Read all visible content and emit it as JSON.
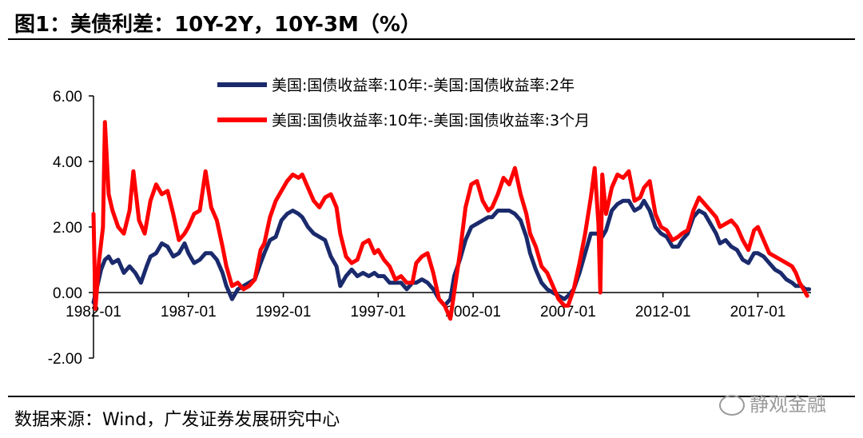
{
  "header": {
    "title": "图1：美债利差：10Y-2Y，10Y-3M（%）"
  },
  "footer": {
    "source": "数据来源：Wind，广发证券发展研究中心",
    "watermark": "静观金融"
  },
  "colors": {
    "series_10y2y": "#1a2a6c",
    "series_10y3m": "#ff0000"
  },
  "chart_data": {
    "type": "line",
    "title": "",
    "xlabel": "",
    "ylabel": "",
    "ylim": [
      -2,
      6
    ],
    "yticks": [
      -2,
      0,
      2,
      4,
      6
    ],
    "ytick_labels": [
      "-2.00",
      "0.00",
      "2.00",
      "4.00",
      "6.00"
    ],
    "xticks": [
      1982.0,
      1987.0,
      1992.0,
      1997.0,
      2002.0,
      2007.0,
      2012.0,
      2017.0
    ],
    "xtick_labels": [
      "1982-01",
      "1987-01",
      "1992-01",
      "1997-01",
      "2002-01",
      "2007-01",
      "2012-01",
      "2017-01"
    ],
    "xlim": [
      1982.0,
      2019.8
    ],
    "legend_position": "top",
    "grid": false,
    "series": [
      {
        "name": "美国:国债收益率:10年:-美国:国债收益率:2年",
        "color": "#1a2a6c",
        "points": [
          [
            1982.0,
            -0.3
          ],
          [
            1982.2,
            0.2
          ],
          [
            1982.4,
            0.7
          ],
          [
            1982.6,
            1.0
          ],
          [
            1982.8,
            1.1
          ],
          [
            1983.0,
            0.9
          ],
          [
            1983.3,
            1.0
          ],
          [
            1983.6,
            0.6
          ],
          [
            1983.9,
            0.8
          ],
          [
            1984.2,
            0.6
          ],
          [
            1984.5,
            0.3
          ],
          [
            1984.8,
            0.8
          ],
          [
            1985.0,
            1.1
          ],
          [
            1985.3,
            1.2
          ],
          [
            1985.6,
            1.5
          ],
          [
            1985.9,
            1.4
          ],
          [
            1986.2,
            1.1
          ],
          [
            1986.5,
            1.2
          ],
          [
            1986.8,
            1.5
          ],
          [
            1987.0,
            1.2
          ],
          [
            1987.3,
            0.9
          ],
          [
            1987.6,
            1.0
          ],
          [
            1987.9,
            1.2
          ],
          [
            1988.2,
            1.2
          ],
          [
            1988.5,
            1.0
          ],
          [
            1988.8,
            0.6
          ],
          [
            1989.0,
            0.2
          ],
          [
            1989.3,
            -0.2
          ],
          [
            1989.6,
            0.1
          ],
          [
            1989.9,
            0.2
          ],
          [
            1990.2,
            0.3
          ],
          [
            1990.5,
            0.4
          ],
          [
            1990.8,
            0.9
          ],
          [
            1991.0,
            1.2
          ],
          [
            1991.3,
            1.6
          ],
          [
            1991.6,
            1.7
          ],
          [
            1991.9,
            2.2
          ],
          [
            1992.2,
            2.4
          ],
          [
            1992.5,
            2.5
          ],
          [
            1992.8,
            2.4
          ],
          [
            1993.0,
            2.3
          ],
          [
            1993.3,
            2.0
          ],
          [
            1993.6,
            1.8
          ],
          [
            1993.9,
            1.7
          ],
          [
            1994.2,
            1.6
          ],
          [
            1994.5,
            1.1
          ],
          [
            1994.8,
            0.8
          ],
          [
            1995.0,
            0.2
          ],
          [
            1995.3,
            0.5
          ],
          [
            1995.6,
            0.7
          ],
          [
            1995.9,
            0.5
          ],
          [
            1996.2,
            0.6
          ],
          [
            1996.5,
            0.5
          ],
          [
            1996.8,
            0.6
          ],
          [
            1997.0,
            0.5
          ],
          [
            1997.3,
            0.5
          ],
          [
            1997.6,
            0.3
          ],
          [
            1997.9,
            0.3
          ],
          [
            1998.2,
            0.3
          ],
          [
            1998.5,
            0.1
          ],
          [
            1998.8,
            0.3
          ],
          [
            1999.0,
            0.3
          ],
          [
            1999.3,
            0.4
          ],
          [
            1999.6,
            0.3
          ],
          [
            1999.9,
            0.1
          ],
          [
            2000.2,
            -0.2
          ],
          [
            2000.5,
            -0.4
          ],
          [
            2000.8,
            -0.2
          ],
          [
            2001.0,
            0.5
          ],
          [
            2001.3,
            1.0
          ],
          [
            2001.6,
            1.6
          ],
          [
            2001.9,
            2.0
          ],
          [
            2002.2,
            2.1
          ],
          [
            2002.5,
            2.2
          ],
          [
            2002.8,
            2.3
          ],
          [
            2003.0,
            2.3
          ],
          [
            2003.3,
            2.5
          ],
          [
            2003.6,
            2.5
          ],
          [
            2003.9,
            2.5
          ],
          [
            2004.2,
            2.4
          ],
          [
            2004.5,
            2.2
          ],
          [
            2004.8,
            1.7
          ],
          [
            2005.0,
            1.2
          ],
          [
            2005.3,
            0.7
          ],
          [
            2005.6,
            0.3
          ],
          [
            2005.9,
            0.1
          ],
          [
            2006.2,
            0.0
          ],
          [
            2006.5,
            -0.1
          ],
          [
            2006.8,
            -0.2
          ],
          [
            2007.0,
            -0.1
          ],
          [
            2007.3,
            0.1
          ],
          [
            2007.6,
            0.6
          ],
          [
            2007.9,
            1.2
          ],
          [
            2008.2,
            1.8
          ],
          [
            2008.5,
            1.8
          ],
          [
            2008.8,
            1.7
          ],
          [
            2009.0,
            1.9
          ],
          [
            2009.3,
            2.5
          ],
          [
            2009.6,
            2.7
          ],
          [
            2009.9,
            2.8
          ],
          [
            2010.2,
            2.8
          ],
          [
            2010.5,
            2.5
          ],
          [
            2010.8,
            2.6
          ],
          [
            2011.0,
            2.8
          ],
          [
            2011.3,
            2.5
          ],
          [
            2011.6,
            2.0
          ],
          [
            2011.9,
            1.8
          ],
          [
            2012.2,
            1.7
          ],
          [
            2012.5,
            1.4
          ],
          [
            2012.8,
            1.4
          ],
          [
            2013.0,
            1.6
          ],
          [
            2013.3,
            1.8
          ],
          [
            2013.6,
            2.3
          ],
          [
            2013.9,
            2.5
          ],
          [
            2014.2,
            2.4
          ],
          [
            2014.5,
            2.1
          ],
          [
            2014.8,
            1.8
          ],
          [
            2015.0,
            1.5
          ],
          [
            2015.3,
            1.6
          ],
          [
            2015.6,
            1.4
          ],
          [
            2015.9,
            1.3
          ],
          [
            2016.2,
            1.0
          ],
          [
            2016.5,
            0.9
          ],
          [
            2016.8,
            1.2
          ],
          [
            2017.0,
            1.2
          ],
          [
            2017.3,
            1.1
          ],
          [
            2017.6,
            0.9
          ],
          [
            2017.9,
            0.7
          ],
          [
            2018.2,
            0.6
          ],
          [
            2018.5,
            0.4
          ],
          [
            2018.8,
            0.3
          ],
          [
            2019.0,
            0.2
          ],
          [
            2019.3,
            0.2
          ],
          [
            2019.5,
            0.1
          ],
          [
            2019.7,
            0.1
          ]
        ]
      },
      {
        "name": "美国:国债收益率:10年:-美国:国债收益率:3个月",
        "color": "#ff0000",
        "points": [
          [
            1982.0,
            2.4
          ],
          [
            1982.1,
            -0.5
          ],
          [
            1982.3,
            1.0
          ],
          [
            1982.5,
            2.0
          ],
          [
            1982.6,
            5.2
          ],
          [
            1982.8,
            3.0
          ],
          [
            1983.0,
            2.5
          ],
          [
            1983.3,
            2.0
          ],
          [
            1983.6,
            1.8
          ],
          [
            1983.9,
            2.5
          ],
          [
            1984.1,
            3.7
          ],
          [
            1984.4,
            2.2
          ],
          [
            1984.7,
            1.8
          ],
          [
            1985.0,
            2.8
          ],
          [
            1985.3,
            3.3
          ],
          [
            1985.6,
            3.0
          ],
          [
            1985.9,
            3.1
          ],
          [
            1986.2,
            2.4
          ],
          [
            1986.5,
            1.6
          ],
          [
            1986.8,
            1.8
          ],
          [
            1987.0,
            2.0
          ],
          [
            1987.3,
            2.4
          ],
          [
            1987.6,
            2.5
          ],
          [
            1987.9,
            3.7
          ],
          [
            1988.2,
            2.6
          ],
          [
            1988.5,
            2.2
          ],
          [
            1988.8,
            1.4
          ],
          [
            1989.0,
            0.8
          ],
          [
            1989.3,
            0.2
          ],
          [
            1989.6,
            0.3
          ],
          [
            1989.9,
            0.1
          ],
          [
            1990.2,
            0.2
          ],
          [
            1990.5,
            0.4
          ],
          [
            1990.8,
            1.3
          ],
          [
            1991.0,
            1.5
          ],
          [
            1991.3,
            2.3
          ],
          [
            1991.6,
            2.8
          ],
          [
            1991.9,
            3.1
          ],
          [
            1992.2,
            3.4
          ],
          [
            1992.5,
            3.6
          ],
          [
            1992.8,
            3.5
          ],
          [
            1993.0,
            3.6
          ],
          [
            1993.3,
            3.2
          ],
          [
            1993.6,
            2.8
          ],
          [
            1993.9,
            2.6
          ],
          [
            1994.2,
            2.9
          ],
          [
            1994.5,
            3.0
          ],
          [
            1994.8,
            2.6
          ],
          [
            1995.0,
            1.8
          ],
          [
            1995.3,
            1.1
          ],
          [
            1995.6,
            0.9
          ],
          [
            1995.9,
            1.0
          ],
          [
            1996.2,
            1.5
          ],
          [
            1996.5,
            1.6
          ],
          [
            1996.8,
            1.2
          ],
          [
            1997.0,
            1.3
          ],
          [
            1997.3,
            1.0
          ],
          [
            1997.6,
            0.8
          ],
          [
            1997.9,
            0.4
          ],
          [
            1998.2,
            0.5
          ],
          [
            1998.5,
            0.3
          ],
          [
            1998.8,
            0.3
          ],
          [
            1999.0,
            0.9
          ],
          [
            1999.3,
            1.1
          ],
          [
            1999.6,
            1.2
          ],
          [
            1999.9,
            0.6
          ],
          [
            2000.2,
            -0.2
          ],
          [
            2000.5,
            -0.4
          ],
          [
            2000.8,
            -0.8
          ],
          [
            2001.0,
            0.0
          ],
          [
            2001.3,
            1.2
          ],
          [
            2001.6,
            2.6
          ],
          [
            2001.9,
            3.3
          ],
          [
            2002.2,
            3.4
          ],
          [
            2002.5,
            2.8
          ],
          [
            2002.8,
            2.5
          ],
          [
            2003.0,
            2.6
          ],
          [
            2003.3,
            3.0
          ],
          [
            2003.6,
            3.5
          ],
          [
            2003.9,
            3.3
          ],
          [
            2004.2,
            3.8
          ],
          [
            2004.5,
            3.0
          ],
          [
            2004.8,
            2.4
          ],
          [
            2005.0,
            1.8
          ],
          [
            2005.3,
            1.4
          ],
          [
            2005.6,
            0.8
          ],
          [
            2005.9,
            0.6
          ],
          [
            2006.2,
            0.2
          ],
          [
            2006.5,
            -0.2
          ],
          [
            2006.8,
            -0.4
          ],
          [
            2007.0,
            -0.4
          ],
          [
            2007.3,
            0.1
          ],
          [
            2007.6,
            0.9
          ],
          [
            2007.9,
            1.8
          ],
          [
            2008.2,
            2.9
          ],
          [
            2008.4,
            3.8
          ],
          [
            2008.6,
            2.1
          ],
          [
            2008.7,
            0.0
          ],
          [
            2008.8,
            3.6
          ],
          [
            2009.0,
            2.4
          ],
          [
            2009.3,
            3.2
          ],
          [
            2009.6,
            3.6
          ],
          [
            2009.9,
            3.5
          ],
          [
            2010.2,
            3.7
          ],
          [
            2010.5,
            2.8
          ],
          [
            2010.8,
            2.9
          ],
          [
            2011.0,
            3.2
          ],
          [
            2011.3,
            3.4
          ],
          [
            2011.6,
            2.4
          ],
          [
            2011.9,
            2.0
          ],
          [
            2012.2,
            1.9
          ],
          [
            2012.5,
            1.6
          ],
          [
            2012.8,
            1.7
          ],
          [
            2013.0,
            1.8
          ],
          [
            2013.3,
            1.9
          ],
          [
            2013.6,
            2.5
          ],
          [
            2013.9,
            2.9
          ],
          [
            2014.2,
            2.7
          ],
          [
            2014.5,
            2.5
          ],
          [
            2014.8,
            2.3
          ],
          [
            2015.0,
            2.0
          ],
          [
            2015.3,
            2.1
          ],
          [
            2015.6,
            2.2
          ],
          [
            2015.9,
            2.0
          ],
          [
            2016.2,
            1.6
          ],
          [
            2016.5,
            1.3
          ],
          [
            2016.8,
            1.9
          ],
          [
            2017.0,
            2.0
          ],
          [
            2017.3,
            1.6
          ],
          [
            2017.6,
            1.2
          ],
          [
            2017.9,
            1.1
          ],
          [
            2018.2,
            1.0
          ],
          [
            2018.5,
            0.9
          ],
          [
            2018.8,
            0.8
          ],
          [
            2019.0,
            0.6
          ],
          [
            2019.2,
            0.3
          ],
          [
            2019.4,
            0.1
          ],
          [
            2019.6,
            -0.1
          ]
        ]
      }
    ]
  }
}
